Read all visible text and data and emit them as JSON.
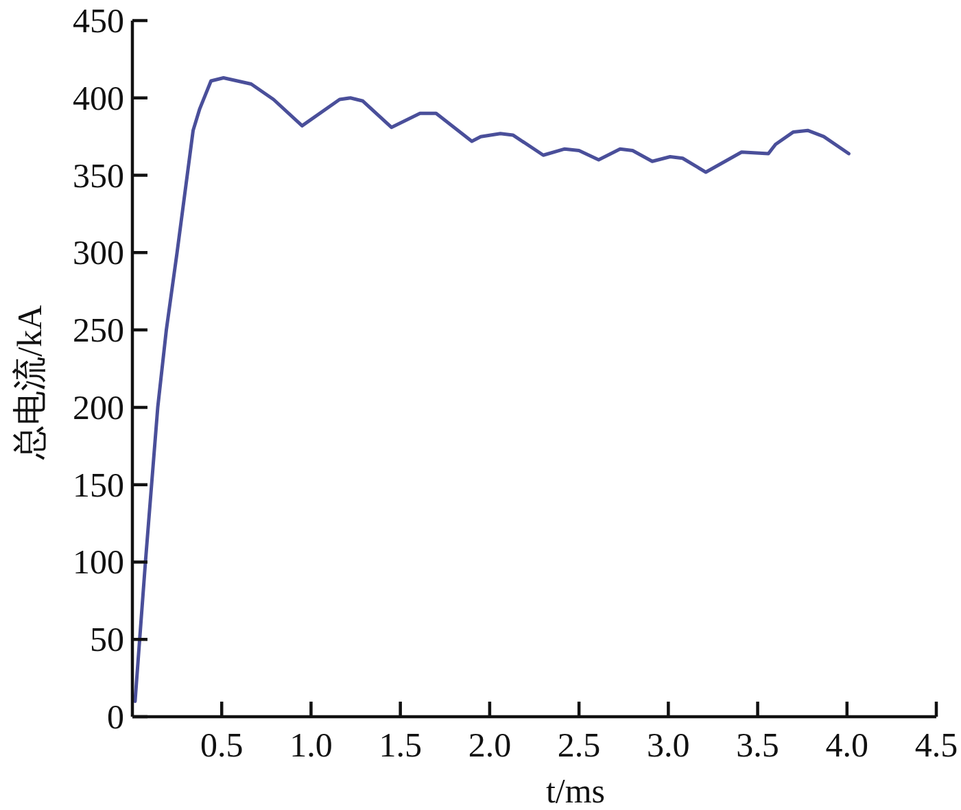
{
  "chart_data": {
    "type": "line",
    "xlabel": "t/ms",
    "ylabel": "总电流/kA",
    "xlim": [
      0,
      4.5
    ],
    "ylim": [
      0,
      450
    ],
    "xticks": [
      0.5,
      {
        "value": 1,
        "label": "1.0"
      },
      1.5,
      {
        "value": 2,
        "label": "2.0"
      },
      2.5,
      {
        "value": 3,
        "label": "3.0"
      },
      3.5,
      {
        "value": 4,
        "label": "4.0"
      },
      4.5
    ],
    "yticks": [
      0,
      50,
      100,
      150,
      200,
      250,
      300,
      350,
      400,
      450
    ],
    "grid": false,
    "marker": "none",
    "line_style": "solid",
    "series": [
      {
        "color": "#4a4f9a",
        "x": [
          0.015,
          0.073,
          0.142,
          0.19,
          0.25,
          0.34,
          0.377,
          0.44,
          0.51,
          0.665,
          0.79,
          0.95,
          1.16,
          1.22,
          1.29,
          1.45,
          1.61,
          1.7,
          1.9,
          1.95,
          2.06,
          2.13,
          2.3,
          2.42,
          2.5,
          2.61,
          2.73,
          2.8,
          2.91,
          3.01,
          3.08,
          3.21,
          3.41,
          3.56,
          3.6,
          3.7,
          3.78,
          3.87,
          4.01
        ],
        "values": [
          10,
          100,
          200,
          250,
          300,
          379,
          393,
          411,
          413,
          409,
          399,
          382,
          399,
          400,
          398,
          381,
          390,
          390,
          372,
          375,
          377,
          376,
          363,
          367,
          366,
          360,
          367,
          366,
          359,
          362,
          361,
          352,
          365,
          364,
          370,
          378,
          379,
          375,
          364
        ]
      }
    ]
  }
}
